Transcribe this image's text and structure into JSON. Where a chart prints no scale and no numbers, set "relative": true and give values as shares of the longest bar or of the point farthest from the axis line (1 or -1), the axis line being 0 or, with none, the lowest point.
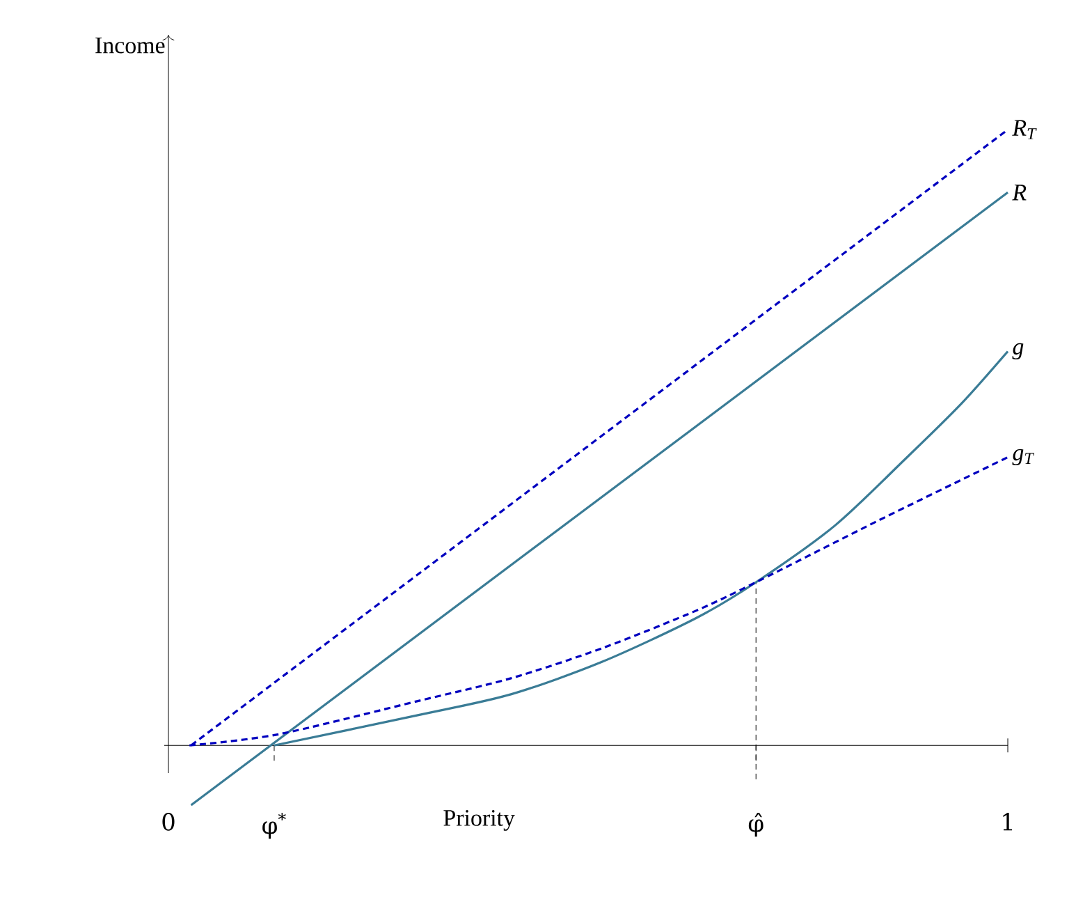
{
  "chart_data": {
    "type": "line",
    "relative": true,
    "xlabel": "Priority",
    "ylabel": "Income",
    "xlim": [
      0,
      1
    ],
    "xticks": [
      0,
      {
        "value": 0.126,
        "label": "φ$^{*}$"
      },
      {
        "value": 0.7,
        "label": "φ̂"
      },
      1
    ],
    "series": [
      {
        "name": "R$_{T}$",
        "color": "#0000bf",
        "line_style": "dashed",
        "x": [
          0.027,
          1.0
        ],
        "values": [
          0,
          1
        ]
      },
      {
        "name": "R",
        "color": "#3a7c96",
        "line_style": "solid",
        "x": [
          0.027,
          1.0
        ],
        "values": [
          -0.097,
          0.898
        ]
      },
      {
        "name": "g",
        "color": "#3a7c96",
        "line_style": "solid",
        "x": [
          0.126,
          0.297,
          0.408,
          0.517,
          0.629,
          0.7,
          0.794,
          0.877,
          0.944,
          1.0
        ],
        "values": [
          0,
          0.049,
          0.083,
          0.136,
          0.207,
          0.265,
          0.357,
          0.464,
          0.554,
          0.64
        ]
      },
      {
        "name": "g$_{T}$",
        "color": "#0000bf",
        "line_style": "dashed",
        "x": [
          0.025,
          0.131,
          0.297,
          0.408,
          0.517,
          0.629,
          0.7,
          0.847,
          1.0
        ],
        "values": [
          0,
          0.018,
          0.072,
          0.109,
          0.158,
          0.219,
          0.265,
          0.366,
          0.468
        ]
      }
    ],
    "ref_lines": [
      {
        "axis": "x",
        "value": 0.7,
        "line_style": "dashed",
        "color": "#000000"
      }
    ],
    "legend": false,
    "grid": false
  }
}
